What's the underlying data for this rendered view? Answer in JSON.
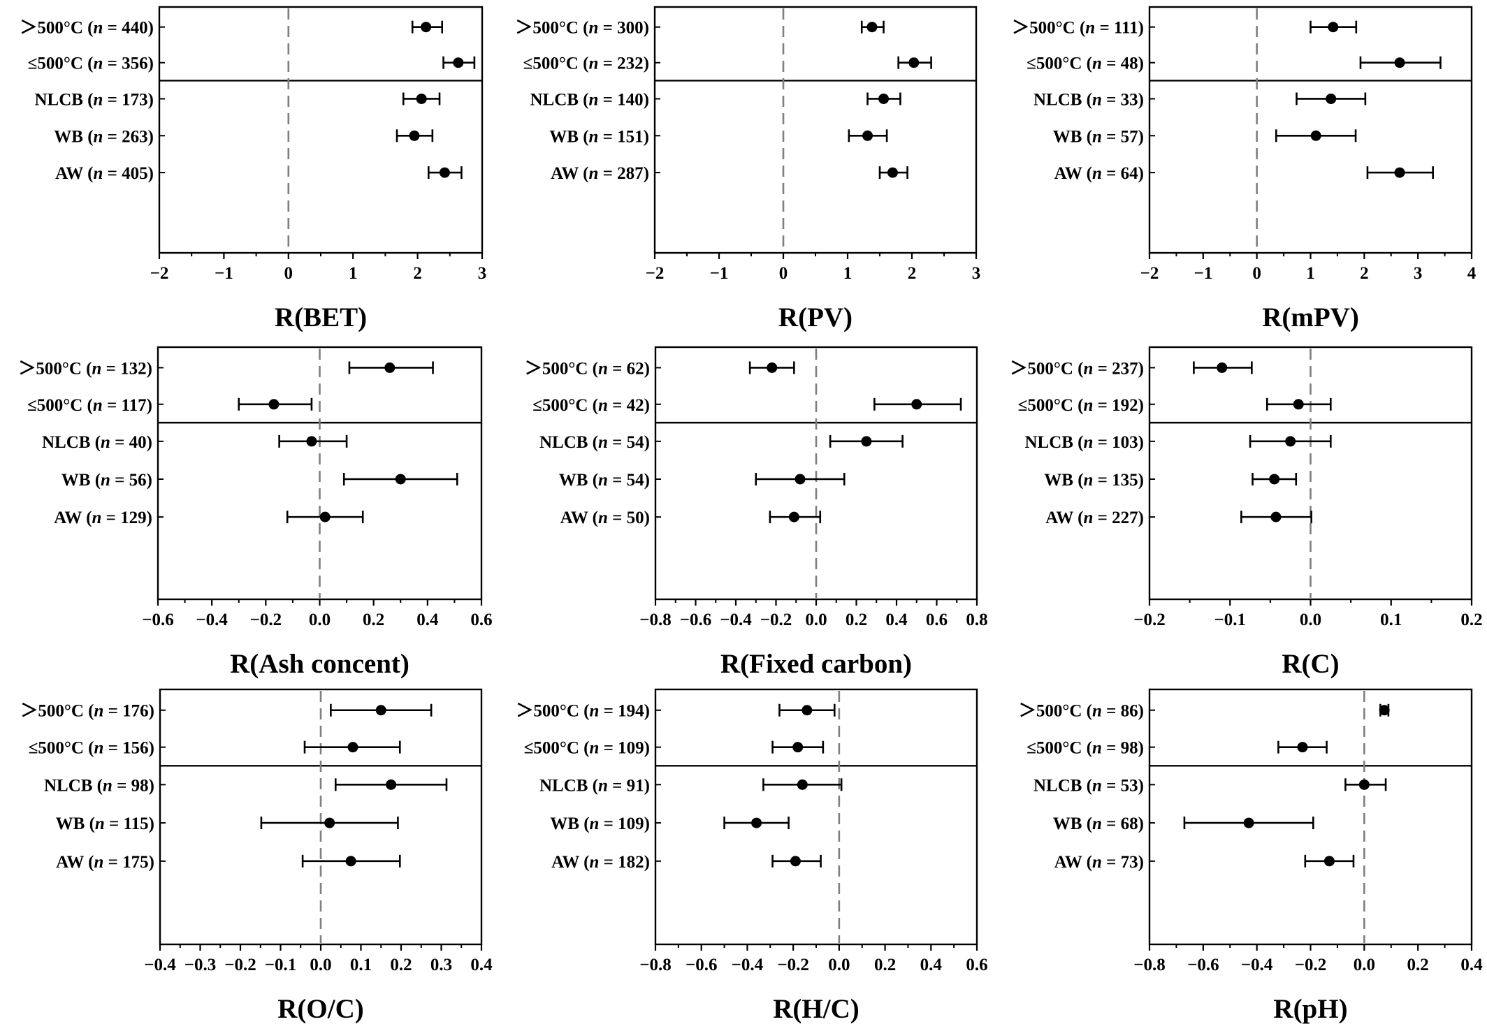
{
  "chart_data": [
    {
      "type": "forest",
      "xlabel": "R(BET)",
      "xlim": [
        -2,
        3
      ],
      "ticks": [
        -2,
        -1,
        0,
        1,
        2,
        3
      ],
      "tick_labels": [
        "−2",
        "−1",
        "0",
        "1",
        "2",
        "3"
      ],
      "groups": [
        {
          "label": "＞500°C",
          "n": "440",
          "mean": 2.13,
          "ci": [
            1.92,
            2.38
          ]
        },
        {
          "label": "≤500°C",
          "n": "356",
          "mean": 2.63,
          "ci": [
            2.4,
            2.88
          ]
        },
        {
          "label": "NLCB",
          "n": "173",
          "mean": 2.06,
          "ci": [
            1.78,
            2.34
          ]
        },
        {
          "label": "WB",
          "n": "263",
          "mean": 1.95,
          "ci": [
            1.68,
            2.23
          ]
        },
        {
          "label": "AW",
          "n": "405",
          "mean": 2.42,
          "ci": [
            2.17,
            2.68
          ]
        }
      ]
    },
    {
      "type": "forest",
      "xlabel": "R(PV)",
      "xlim": [
        -2,
        3
      ],
      "ticks": [
        -2,
        -1,
        0,
        1,
        2,
        3
      ],
      "tick_labels": [
        "−2",
        "−1",
        "0",
        "1",
        "2",
        "3"
      ],
      "groups": [
        {
          "label": "＞500°C",
          "n": "300",
          "mean": 1.38,
          "ci": [
            1.22,
            1.56
          ]
        },
        {
          "label": "≤500°C",
          "n": "232",
          "mean": 2.03,
          "ci": [
            1.79,
            2.3
          ]
        },
        {
          "label": "NLCB",
          "n": "140",
          "mean": 1.56,
          "ci": [
            1.31,
            1.82
          ]
        },
        {
          "label": "WB",
          "n": "151",
          "mean": 1.31,
          "ci": [
            1.02,
            1.61
          ]
        },
        {
          "label": "AW",
          "n": "287",
          "mean": 1.7,
          "ci": [
            1.5,
            1.93
          ]
        }
      ]
    },
    {
      "type": "forest",
      "xlabel": "R(mPV)",
      "xlim": [
        -2,
        4
      ],
      "ticks": [
        -2,
        -1,
        0,
        1,
        2,
        3,
        4
      ],
      "tick_labels": [
        "−2",
        "−1",
        "0",
        "1",
        "2",
        "3",
        "4"
      ],
      "groups": [
        {
          "label": "＞500°C",
          "n": "111",
          "mean": 1.42,
          "ci": [
            1.0,
            1.85
          ]
        },
        {
          "label": "≤500°C",
          "n": "48",
          "mean": 2.66,
          "ci": [
            1.93,
            3.42
          ]
        },
        {
          "label": "NLCB",
          "n": "33",
          "mean": 1.38,
          "ci": [
            0.74,
            2.02
          ]
        },
        {
          "label": "WB",
          "n": "57",
          "mean": 1.1,
          "ci": [
            0.36,
            1.84
          ]
        },
        {
          "label": "AW",
          "n": "64",
          "mean": 2.66,
          "ci": [
            2.06,
            3.28
          ]
        }
      ]
    },
    {
      "type": "forest",
      "xlabel": "R(Ash concent)",
      "xlim": [
        -0.6,
        0.6
      ],
      "ticks": [
        -0.6,
        -0.4,
        -0.2,
        0.0,
        0.2,
        0.4,
        0.6
      ],
      "tick_labels": [
        "−0.6",
        "−0.4",
        "−0.2",
        "0.0",
        "0.2",
        "0.4",
        "0.6"
      ],
      "groups": [
        {
          "label": "＞500°C",
          "n": "132",
          "mean": 0.26,
          "ci": [
            0.11,
            0.42
          ]
        },
        {
          "label": "≤500°C",
          "n": "117",
          "mean": -0.17,
          "ci": [
            -0.3,
            -0.03
          ]
        },
        {
          "label": "NLCB",
          "n": "40",
          "mean": -0.03,
          "ci": [
            -0.15,
            0.1
          ]
        },
        {
          "label": "WB",
          "n": "56",
          "mean": 0.3,
          "ci": [
            0.09,
            0.51
          ]
        },
        {
          "label": "AW",
          "n": "129",
          "mean": 0.02,
          "ci": [
            -0.12,
            0.16
          ]
        }
      ]
    },
    {
      "type": "forest",
      "xlabel": "R(Fixed carbon)",
      "xlim": [
        -0.8,
        0.8
      ],
      "ticks": [
        -0.8,
        -0.6,
        -0.4,
        -0.2,
        0.0,
        0.2,
        0.4,
        0.6,
        0.8
      ],
      "tick_labels": [
        "−0.8",
        "−0.6",
        "−0.4",
        "−0.2",
        "0.0",
        "0.2",
        "0.4",
        "0.6",
        "0.8"
      ],
      "groups": [
        {
          "label": "＞500°C",
          "n": "62",
          "mean": -0.22,
          "ci": [
            -0.33,
            -0.11
          ]
        },
        {
          "label": "≤500°C",
          "n": "42",
          "mean": 0.5,
          "ci": [
            0.29,
            0.72
          ]
        },
        {
          "label": "NLCB",
          "n": "54",
          "mean": 0.25,
          "ci": [
            0.07,
            0.43
          ]
        },
        {
          "label": "WB",
          "n": "54",
          "mean": -0.08,
          "ci": [
            -0.3,
            0.14
          ]
        },
        {
          "label": "AW",
          "n": "50",
          "mean": -0.11,
          "ci": [
            -0.23,
            0.02
          ]
        }
      ]
    },
    {
      "type": "forest",
      "xlabel": "R(C)",
      "xlim": [
        -0.2,
        0.2
      ],
      "ticks": [
        -0.2,
        -0.1,
        0.0,
        0.1,
        0.2
      ],
      "tick_labels": [
        "−0.2",
        "−0.1",
        "0.0",
        "0.1",
        "0.2"
      ],
      "groups": [
        {
          "label": "＞500°C",
          "n": "237",
          "mean": -0.11,
          "ci": [
            -0.145,
            -0.073
          ]
        },
        {
          "label": "≤500°C",
          "n": "192",
          "mean": -0.015,
          "ci": [
            -0.054,
            0.025
          ]
        },
        {
          "label": "NLCB",
          "n": "103",
          "mean": -0.025,
          "ci": [
            -0.075,
            0.025
          ]
        },
        {
          "label": "WB",
          "n": "135",
          "mean": -0.045,
          "ci": [
            -0.072,
            -0.018
          ]
        },
        {
          "label": "AW",
          "n": "227",
          "mean": -0.043,
          "ci": [
            -0.086,
            0.001
          ]
        }
      ]
    },
    {
      "type": "forest",
      "xlabel": "R(O/C)",
      "xlim": [
        -0.4,
        0.4
      ],
      "ticks": [
        -0.4,
        -0.3,
        -0.2,
        -0.1,
        0.0,
        0.1,
        0.2,
        0.3,
        0.4
      ],
      "tick_labels": [
        "−0.4",
        "−0.3",
        "−0.2",
        "−0.1",
        "0.0",
        "0.1",
        "0.2",
        "0.3",
        "0.4"
      ],
      "groups": [
        {
          "label": "＞500°C",
          "n": "176",
          "mean": 0.15,
          "ci": [
            0.025,
            0.275
          ]
        },
        {
          "label": "≤500°C",
          "n": "156",
          "mean": 0.08,
          "ci": [
            -0.04,
            0.197
          ]
        },
        {
          "label": "NLCB",
          "n": "98",
          "mean": 0.175,
          "ci": [
            0.037,
            0.313
          ]
        },
        {
          "label": "WB",
          "n": "115",
          "mean": 0.022,
          "ci": [
            -0.148,
            0.192
          ]
        },
        {
          "label": "AW",
          "n": "175",
          "mean": 0.075,
          "ci": [
            -0.045,
            0.197
          ]
        }
      ]
    },
    {
      "type": "forest",
      "xlabel": "R(H/C)",
      "xlim": [
        -0.8,
        0.6
      ],
      "ticks": [
        -0.8,
        -0.6,
        -0.4,
        -0.2,
        0.0,
        0.2,
        0.4,
        0.6
      ],
      "tick_labels": [
        "−0.8",
        "−0.6",
        "−0.4",
        "−0.2",
        "0.0",
        "0.2",
        "0.4",
        "0.6"
      ],
      "groups": [
        {
          "label": "＞500°C",
          "n": "194",
          "mean": -0.14,
          "ci": [
            -0.26,
            -0.02
          ]
        },
        {
          "label": "≤500°C",
          "n": "109",
          "mean": -0.18,
          "ci": [
            -0.29,
            -0.07
          ]
        },
        {
          "label": "NLCB",
          "n": "91",
          "mean": -0.16,
          "ci": [
            -0.33,
            0.01
          ]
        },
        {
          "label": "WB",
          "n": "109",
          "mean": -0.36,
          "ci": [
            -0.5,
            -0.22
          ]
        },
        {
          "label": "AW",
          "n": "182",
          "mean": -0.19,
          "ci": [
            -0.29,
            -0.08
          ]
        }
      ]
    },
    {
      "type": "forest",
      "xlabel": "R(pH)",
      "xlim": [
        -0.8,
        0.4
      ],
      "ticks": [
        -0.8,
        -0.6,
        -0.4,
        -0.2,
        0.0,
        0.2,
        0.4
      ],
      "tick_labels": [
        "−0.8",
        "−0.6",
        "−0.4",
        "−0.2",
        "0.0",
        "0.2",
        "0.4"
      ],
      "groups": [
        {
          "label": "＞500°C",
          "n": "86",
          "mean": 0.075,
          "ci": [
            0.06,
            0.09
          ]
        },
        {
          "label": "≤500°C",
          "n": "98",
          "mean": -0.23,
          "ci": [
            -0.32,
            -0.14
          ]
        },
        {
          "label": "NLCB",
          "n": "53",
          "mean": 0.0,
          "ci": [
            -0.07,
            0.08
          ]
        },
        {
          "label": "WB",
          "n": "68",
          "mean": -0.43,
          "ci": [
            -0.67,
            -0.19
          ]
        },
        {
          "label": "AW",
          "n": "73",
          "mean": -0.13,
          "ci": [
            -0.22,
            -0.04
          ]
        }
      ]
    }
  ],
  "colors": {
    "axis": "#000000",
    "reference_line": "#7f7f7f",
    "point": "#000000"
  }
}
